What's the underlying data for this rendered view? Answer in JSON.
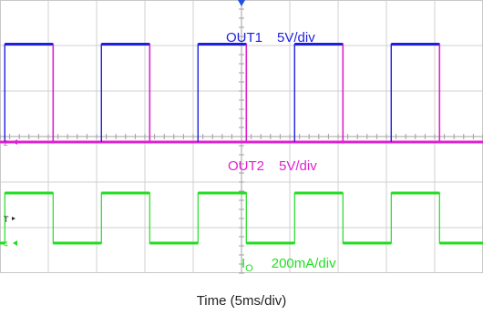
{
  "chart_data": {
    "type": "line",
    "title": "",
    "xlabel": "Time (5ms/div)",
    "ylabel": "",
    "grid": true,
    "x_divisions": 10,
    "y_divisions": 6,
    "xlim": [
      0,
      50
    ],
    "period_ms": 10,
    "duty_cycle": 0.5,
    "series": [
      {
        "name": "OUT1",
        "name_parts": [
          "OUT1"
        ],
        "scale": "5V/div",
        "color": "#1f1fe0",
        "marker": "",
        "type": "pulse",
        "high_div": 2.15,
        "low_div": 0.0,
        "first_rise_ms": 0.5
      },
      {
        "name": "OUT2",
        "name_parts": [
          "OUT2"
        ],
        "scale": "5V/div",
        "color": "#e020d0",
        "marker": "2",
        "type": "spikes",
        "high_div": 2.15,
        "low_div": 0.0,
        "first_rise_ms": 0.5
      },
      {
        "name": "IO",
        "name_parts": [
          "I",
          "O"
        ],
        "scale": "200mA/div",
        "color": "#22dd22",
        "marker": "4",
        "type": "pulse",
        "high_div": 1.1,
        "low_div": 0.0,
        "first_rise_ms": 0.5
      }
    ],
    "trigger_marker": "T"
  }
}
